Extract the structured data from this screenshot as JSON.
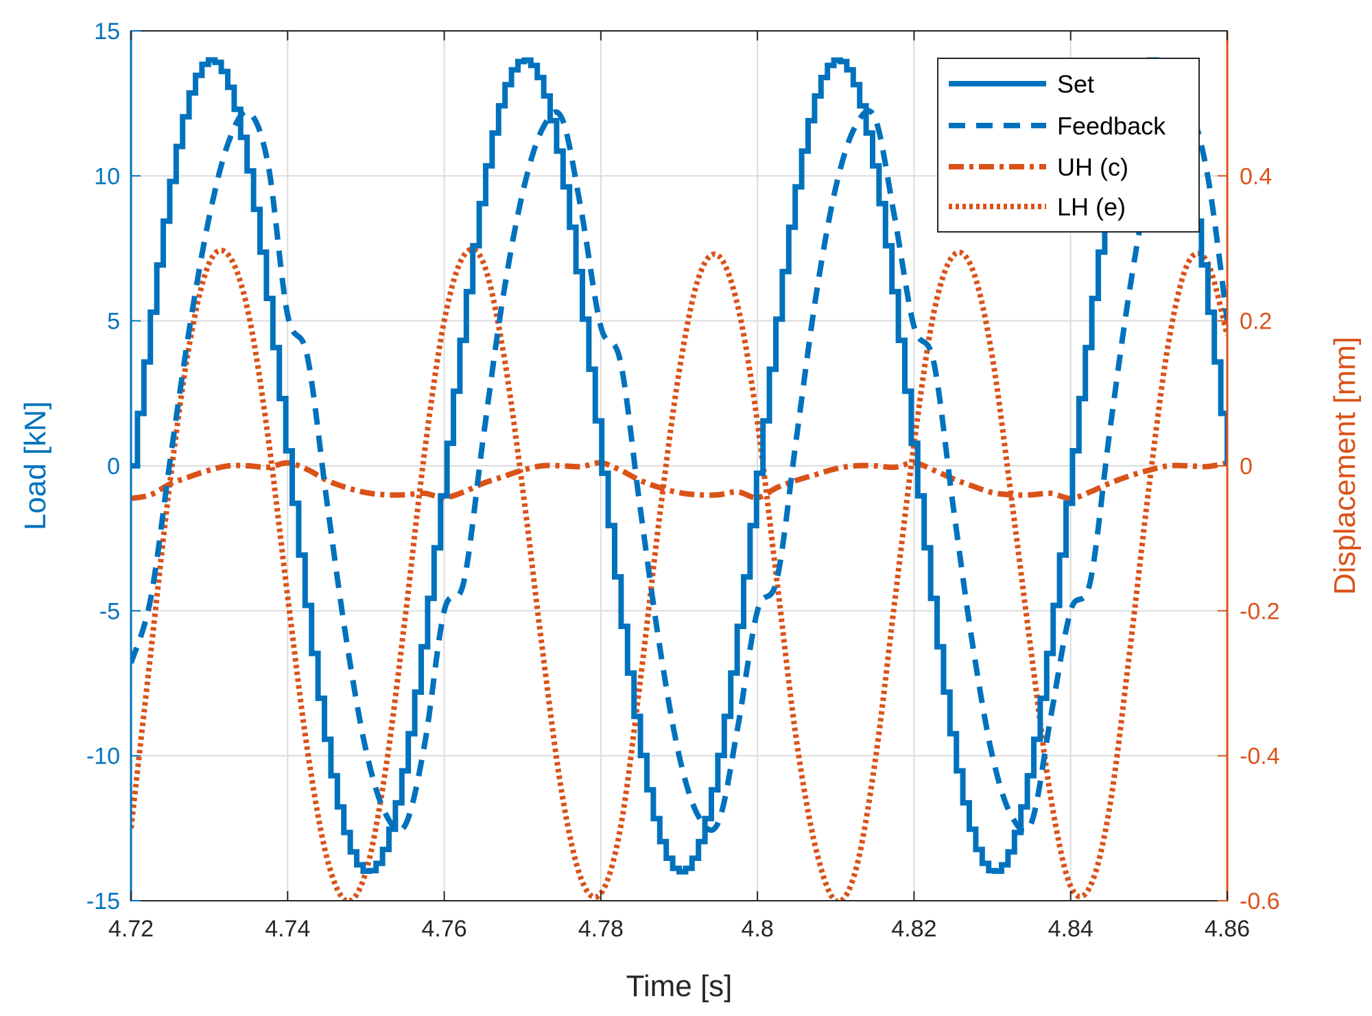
{
  "chart_data": {
    "type": "line",
    "xlabel": "Time [s]",
    "ylabel_left": "Load [kN]",
    "ylabel_right": "Displacement [mm]",
    "xlim": [
      4.72,
      4.86
    ],
    "ylim_left": [
      -15,
      15
    ],
    "ylim_right": [
      -0.6,
      0.6
    ],
    "grid": true,
    "legend_position": "top-right",
    "x_ticks": [
      "4.72",
      "4.74",
      "4.76",
      "4.78",
      "4.8",
      "4.82",
      "4.84",
      "4.86"
    ],
    "y_left_ticks": [
      "-15",
      "-10",
      "-5",
      "0",
      "5",
      "10",
      "15"
    ],
    "y_right_ticks": [
      "-0.6",
      "-0.4",
      "-0.2",
      "0",
      "0.2",
      "0.4"
    ],
    "x_tick_values": [
      4.72,
      4.74,
      4.76,
      4.78,
      4.8,
      4.82,
      4.84,
      4.86
    ],
    "y_left_tick_values": [
      -15,
      -10,
      -5,
      0,
      5,
      10,
      15
    ],
    "y_right_tick_values": [
      -0.6,
      -0.4,
      -0.2,
      0,
      0.2,
      0.4
    ],
    "colors": {
      "blue": "#0072BD",
      "orange": "#D95319"
    },
    "series": [
      {
        "name": "Set",
        "axis": "left",
        "style": "solid-stepped",
        "x": [
          4.72,
          4.7225,
          4.725,
          4.7275,
          4.73,
          4.7325,
          4.735,
          4.7375,
          4.74,
          4.7425,
          4.745,
          4.7475,
          4.75,
          4.7525,
          4.755,
          4.7575,
          4.76,
          4.7625,
          4.765,
          4.7675,
          4.77,
          4.7725,
          4.775,
          4.7775,
          4.78,
          4.7825,
          4.785,
          4.7875,
          4.79,
          4.7925,
          4.795,
          4.7975,
          4.8,
          4.8025,
          4.805,
          4.8075,
          4.81,
          4.8125,
          4.815,
          4.8175,
          4.82,
          4.8225,
          4.825,
          4.8275,
          4.83,
          4.8325,
          4.835,
          4.8375,
          4.84,
          4.8425,
          4.845,
          4.8475,
          4.85,
          4.8525,
          4.855,
          4.8575,
          4.86
        ],
        "values": [
          0,
          5.4,
          9.9,
          12.9,
          14.0,
          12.9,
          9.9,
          5.4,
          0,
          -5.4,
          -9.9,
          -12.9,
          -14.0,
          -12.9,
          -9.9,
          -5.4,
          0,
          5.4,
          9.9,
          12.9,
          14.0,
          12.9,
          9.9,
          5.4,
          0,
          -5.4,
          -9.9,
          -12.9,
          -14.0,
          -12.9,
          -9.9,
          -5.4,
          0,
          5.4,
          9.9,
          12.9,
          14.0,
          12.9,
          9.9,
          5.4,
          0,
          -5.4,
          -9.9,
          -12.9,
          -14.0,
          -12.9,
          -9.9,
          -5.4,
          0,
          5.4,
          9.9,
          12.9,
          14.0,
          12.9,
          9.9,
          5.4,
          0
        ]
      },
      {
        "name": "Feedback",
        "axis": "left",
        "style": "dashed",
        "x": [
          4.72,
          4.7225,
          4.725,
          4.7275,
          4.73,
          4.7325,
          4.735,
          4.7375,
          4.74,
          4.7425,
          4.745,
          4.7475,
          4.75,
          4.7525,
          4.755,
          4.7575,
          4.76,
          4.7625,
          4.765,
          4.7675,
          4.77,
          4.7725,
          4.775,
          4.7775,
          4.78,
          4.7825,
          4.785,
          4.7875,
          4.79,
          4.7925,
          4.795,
          4.7975,
          4.8,
          4.8025,
          4.805,
          4.8075,
          4.81,
          4.8125,
          4.815,
          4.8175,
          4.82,
          4.8225,
          4.825,
          4.8275,
          4.83,
          4.8325,
          4.835,
          4.8375,
          4.84,
          4.8425,
          4.845,
          4.8475,
          4.85,
          4.8525,
          4.855,
          4.8575,
          4.86
        ],
        "values": [
          -6.8,
          -4.6,
          0.2,
          4.8,
          8.6,
          11.2,
          12.2,
          10.4,
          5.2,
          3.8,
          -1.2,
          -6.0,
          -9.8,
          -12.0,
          -12.4,
          -9.6,
          -5.0,
          -4.0,
          1.0,
          5.8,
          9.4,
          11.6,
          12.0,
          8.8,
          4.8,
          3.6,
          -1.4,
          -6.2,
          -10.0,
          -12.1,
          -12.3,
          -9.0,
          -5.0,
          -3.9,
          1.0,
          5.9,
          9.6,
          11.7,
          12.0,
          8.6,
          4.8,
          3.6,
          -1.4,
          -6.2,
          -10.0,
          -12.1,
          -12.3,
          -8.6,
          -5.0,
          -4.0,
          1.2,
          6.0,
          9.8,
          12.0,
          12.4,
          10.0,
          5.0
        ]
      },
      {
        "name": "UH (c)",
        "axis": "right",
        "style": "dashdot",
        "x": [
          4.72,
          4.7225,
          4.725,
          4.7275,
          4.73,
          4.7325,
          4.735,
          4.7375,
          4.74,
          4.7425,
          4.745,
          4.7475,
          4.75,
          4.7525,
          4.755,
          4.7575,
          4.76,
          4.7625,
          4.765,
          4.7675,
          4.77,
          4.7725,
          4.775,
          4.7775,
          4.78,
          4.7825,
          4.785,
          4.7875,
          4.79,
          4.7925,
          4.795,
          4.7975,
          4.8,
          4.8025,
          4.805,
          4.8075,
          4.81,
          4.8125,
          4.815,
          4.8175,
          4.82,
          4.8225,
          4.825,
          4.8275,
          4.83,
          4.8325,
          4.835,
          4.8375,
          4.84,
          4.8425,
          4.845,
          4.8475,
          4.85,
          4.8525,
          4.855,
          4.8575,
          4.86
        ],
        "values": [
          -0.045,
          -0.04,
          -0.025,
          -0.015,
          -0.006,
          0.0,
          0.0,
          -0.002,
          0.004,
          -0.005,
          -0.02,
          -0.03,
          -0.037,
          -0.04,
          -0.04,
          -0.038,
          -0.044,
          -0.036,
          -0.024,
          -0.015,
          -0.006,
          0.0,
          0.0,
          -0.001,
          0.004,
          -0.006,
          -0.02,
          -0.03,
          -0.037,
          -0.04,
          -0.04,
          -0.036,
          -0.044,
          -0.03,
          -0.02,
          -0.012,
          -0.004,
          0.0,
          0.0,
          -0.002,
          0.004,
          -0.006,
          -0.018,
          -0.028,
          -0.037,
          -0.04,
          -0.04,
          -0.038,
          -0.045,
          -0.036,
          -0.024,
          -0.014,
          -0.006,
          0.0,
          0.0,
          -0.001,
          0.004
        ]
      },
      {
        "name": "LH (e)",
        "axis": "right",
        "style": "dotted",
        "x": [
          4.72,
          4.7225,
          4.725,
          4.7275,
          4.73,
          4.7325,
          4.735,
          4.7375,
          4.74,
          4.7425,
          4.745,
          4.7475,
          4.75,
          4.7525,
          4.755,
          4.7575,
          4.76,
          4.7625,
          4.765,
          4.7675,
          4.77,
          4.7725,
          4.775,
          4.7775,
          4.78,
          4.7825,
          4.785,
          4.7875,
          4.79,
          4.7925,
          4.795,
          4.7975,
          4.8,
          4.8025,
          4.805,
          4.8075,
          4.81,
          4.8125,
          4.815,
          4.8175,
          4.82,
          4.8225,
          4.825,
          4.8275,
          4.83,
          4.8325,
          4.835,
          4.8375,
          4.84,
          4.8425,
          4.845,
          4.8475,
          4.85,
          4.8525,
          4.855,
          4.8575,
          4.86
        ],
        "values": [
          -0.5,
          -0.26,
          -0.02,
          0.17,
          0.28,
          0.29,
          0.21,
          0.04,
          -0.18,
          -0.39,
          -0.54,
          -0.6,
          -0.56,
          -0.42,
          -0.21,
          0.02,
          0.2,
          0.29,
          0.28,
          0.16,
          -0.03,
          -0.25,
          -0.45,
          -0.57,
          -0.59,
          -0.5,
          -0.3,
          -0.07,
          0.13,
          0.26,
          0.29,
          0.22,
          0.06,
          -0.16,
          -0.38,
          -0.53,
          -0.6,
          -0.56,
          -0.41,
          -0.19,
          0.03,
          0.21,
          0.29,
          0.27,
          0.15,
          -0.05,
          -0.26,
          -0.46,
          -0.58,
          -0.58,
          -0.47,
          -0.26,
          -0.03,
          0.17,
          0.28,
          0.28,
          0.18
        ]
      }
    ]
  }
}
